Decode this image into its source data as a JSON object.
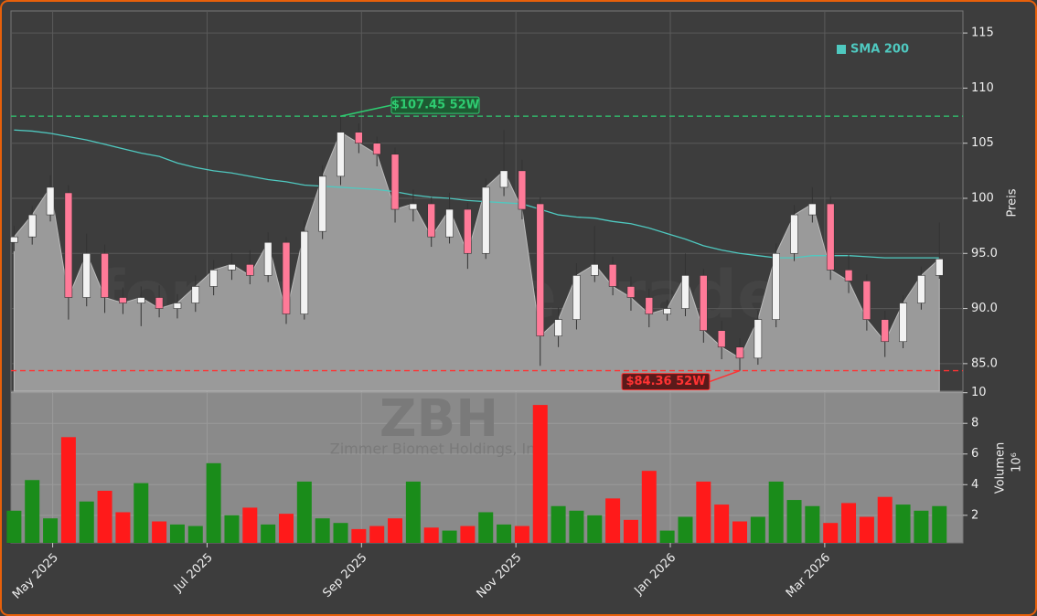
{
  "chart_data": {
    "type": "candlestick",
    "watermark": "forexsignale.trade",
    "symbol": "ZBH",
    "company": "Zimmer Biomet Holdings, Inc.",
    "y_label": "Preis",
    "volume_label": "Volumen",
    "volume_unit": "10⁶",
    "x": [
      0.5,
      0.735,
      0.97,
      1.205,
      1.44,
      1.675,
      1.91,
      2.145,
      2.38,
      2.615,
      2.85,
      3.085,
      3.32,
      3.555,
      3.79,
      4.025,
      4.26,
      4.495,
      4.73,
      4.965,
      5.2,
      5.435,
      5.67,
      5.905,
      6.14,
      6.375,
      6.61,
      6.845,
      7.08,
      7.315,
      7.55,
      7.785,
      8.02,
      8.255,
      8.49,
      8.725,
      8.96,
      9.195,
      9.43,
      9.665,
      9.9,
      10.135,
      10.37,
      10.605,
      10.84,
      11.075,
      11.31,
      11.545,
      11.78,
      12.015,
      12.25,
      12.485
    ],
    "xlim": [
      0.46,
      12.79
    ],
    "xticks": [
      {
        "value": 1,
        "label": "May 2025"
      },
      {
        "value": 3,
        "label": "Jul 2025"
      },
      {
        "value": 5,
        "label": "Sep 2025"
      },
      {
        "value": 7,
        "label": "Nov 2025"
      },
      {
        "value": 9,
        "label": "Jan 2026"
      },
      {
        "value": 11,
        "label": "Mar 2026"
      }
    ],
    "open": [
      96,
      96.5,
      98.5,
      100.5,
      91,
      95,
      91,
      90.5,
      91,
      90,
      90.5,
      92,
      93.5,
      94,
      93,
      96,
      89.5,
      97,
      102,
      106,
      105,
      104,
      99,
      99.5,
      96.5,
      99,
      95,
      101,
      102.5,
      99.5,
      87.5,
      89,
      93,
      94,
      92,
      91,
      89.5,
      90,
      93,
      88,
      86.5,
      85.5,
      89,
      95,
      98.5,
      99.5,
      93.5,
      92.5,
      89,
      87,
      90.5,
      93
    ],
    "high": [
      97.5,
      99.3,
      102.1,
      101.2,
      96.8,
      95.8,
      91.9,
      92,
      92.1,
      91.3,
      93,
      94.4,
      95,
      95.3,
      96.9,
      96.5,
      98,
      103,
      107.45,
      106.8,
      105.6,
      104.6,
      100.8,
      100.1,
      100.5,
      99.6,
      101.8,
      106.2,
      103.5,
      100.1,
      90.1,
      94.1,
      97.5,
      94.7,
      92.9,
      91.8,
      90.8,
      95,
      93.6,
      88.9,
      87.3,
      89.8,
      95.9,
      99.4,
      101,
      100.2,
      94.9,
      93.1,
      89.8,
      91.2,
      93.8,
      97.8
    ],
    "low": [
      95.2,
      95.8,
      97.9,
      89,
      90.2,
      89.6,
      89.5,
      88.4,
      89.2,
      89.1,
      89.7,
      91.2,
      92.6,
      92.2,
      92.4,
      88.6,
      89,
      96.3,
      101.2,
      104.1,
      102.9,
      97.8,
      97.9,
      95.6,
      95.9,
      93.6,
      94.5,
      100.2,
      98.1,
      84.8,
      86.5,
      88.1,
      92.4,
      91.2,
      89.8,
      88.3,
      88.9,
      89.3,
      86.9,
      85.4,
      84.36,
      84.9,
      88.3,
      94.3,
      97.8,
      92.6,
      91.4,
      88,
      85.6,
      86.4,
      89.9,
      92.7
    ],
    "close": [
      96.5,
      98.5,
      101,
      91,
      95,
      91,
      90.5,
      91,
      90,
      90.5,
      92,
      93.5,
      94,
      93,
      96,
      89.5,
      97,
      102,
      106,
      105,
      104,
      99,
      99.5,
      96.5,
      99,
      95,
      101,
      102.5,
      99,
      87.5,
      89,
      93,
      94,
      92,
      91,
      89.5,
      90,
      93,
      88,
      86.5,
      85.5,
      89,
      95,
      98.5,
      99.5,
      93.5,
      92.5,
      89,
      87,
      90.5,
      93,
      94.5
    ],
    "up_color": "#f2f2f2",
    "down_color": "#ff7a98",
    "area_color": "#9a9a9a",
    "series": [
      {
        "name": "SMA 200",
        "color": "#4fc9c0",
        "values": [
          106.2,
          106.1,
          105.9,
          105.6,
          105.3,
          104.9,
          104.5,
          104.1,
          103.8,
          103.2,
          102.8,
          102.5,
          102.3,
          102,
          101.7,
          101.5,
          101.2,
          101.1,
          101,
          100.9,
          100.8,
          100.6,
          100.3,
          100.1,
          100,
          99.8,
          99.7,
          99.6,
          99.5,
          99,
          98.5,
          98.3,
          98.2,
          97.9,
          97.7,
          97.3,
          96.8,
          96.3,
          95.7,
          95.3,
          95,
          94.8,
          94.6,
          94.6,
          94.8,
          94.8,
          94.8,
          94.7,
          94.6,
          94.6,
          94.6,
          94.6
        ]
      }
    ],
    "volume": [
      2.3,
      4.3,
      1.8,
      7.1,
      2.9,
      3.6,
      2.2,
      4.1,
      1.6,
      1.4,
      1.3,
      5.4,
      2.0,
      2.5,
      1.4,
      2.1,
      4.2,
      1.8,
      1.5,
      1.1,
      1.3,
      1.8,
      4.2,
      1.2,
      1.0,
      1.3,
      2.2,
      1.4,
      1.3,
      9.2,
      2.6,
      2.3,
      2.0,
      3.1,
      1.7,
      4.9,
      1.0,
      1.9,
      4.2,
      2.7,
      1.6,
      1.9,
      4.2,
      3.0,
      2.6,
      1.5,
      2.8,
      1.9,
      3.2,
      2.7,
      2.3,
      2.6
    ],
    "volume_up_color": "#1a8c1a",
    "volume_down_color": "#ff1a1a",
    "ylim": [
      82.5,
      117
    ],
    "yticks": [
      {
        "value": 85,
        "label": "85.0"
      },
      {
        "value": 90,
        "label": "90.0"
      },
      {
        "value": 95,
        "label": "95.0"
      },
      100,
      105,
      110,
      115
    ],
    "volume_ylim": [
      0.2,
      10.1
    ],
    "volume_yticks": [
      2,
      4,
      6,
      8,
      10
    ],
    "annotations": [
      {
        "text": "$107.45 52W",
        "value": 107.45,
        "color": "#2ecc71"
      },
      {
        "text": "$84.36 52W",
        "value": 84.36,
        "color": "#ff3333"
      }
    ],
    "grid": true,
    "legend": "upper right"
  }
}
